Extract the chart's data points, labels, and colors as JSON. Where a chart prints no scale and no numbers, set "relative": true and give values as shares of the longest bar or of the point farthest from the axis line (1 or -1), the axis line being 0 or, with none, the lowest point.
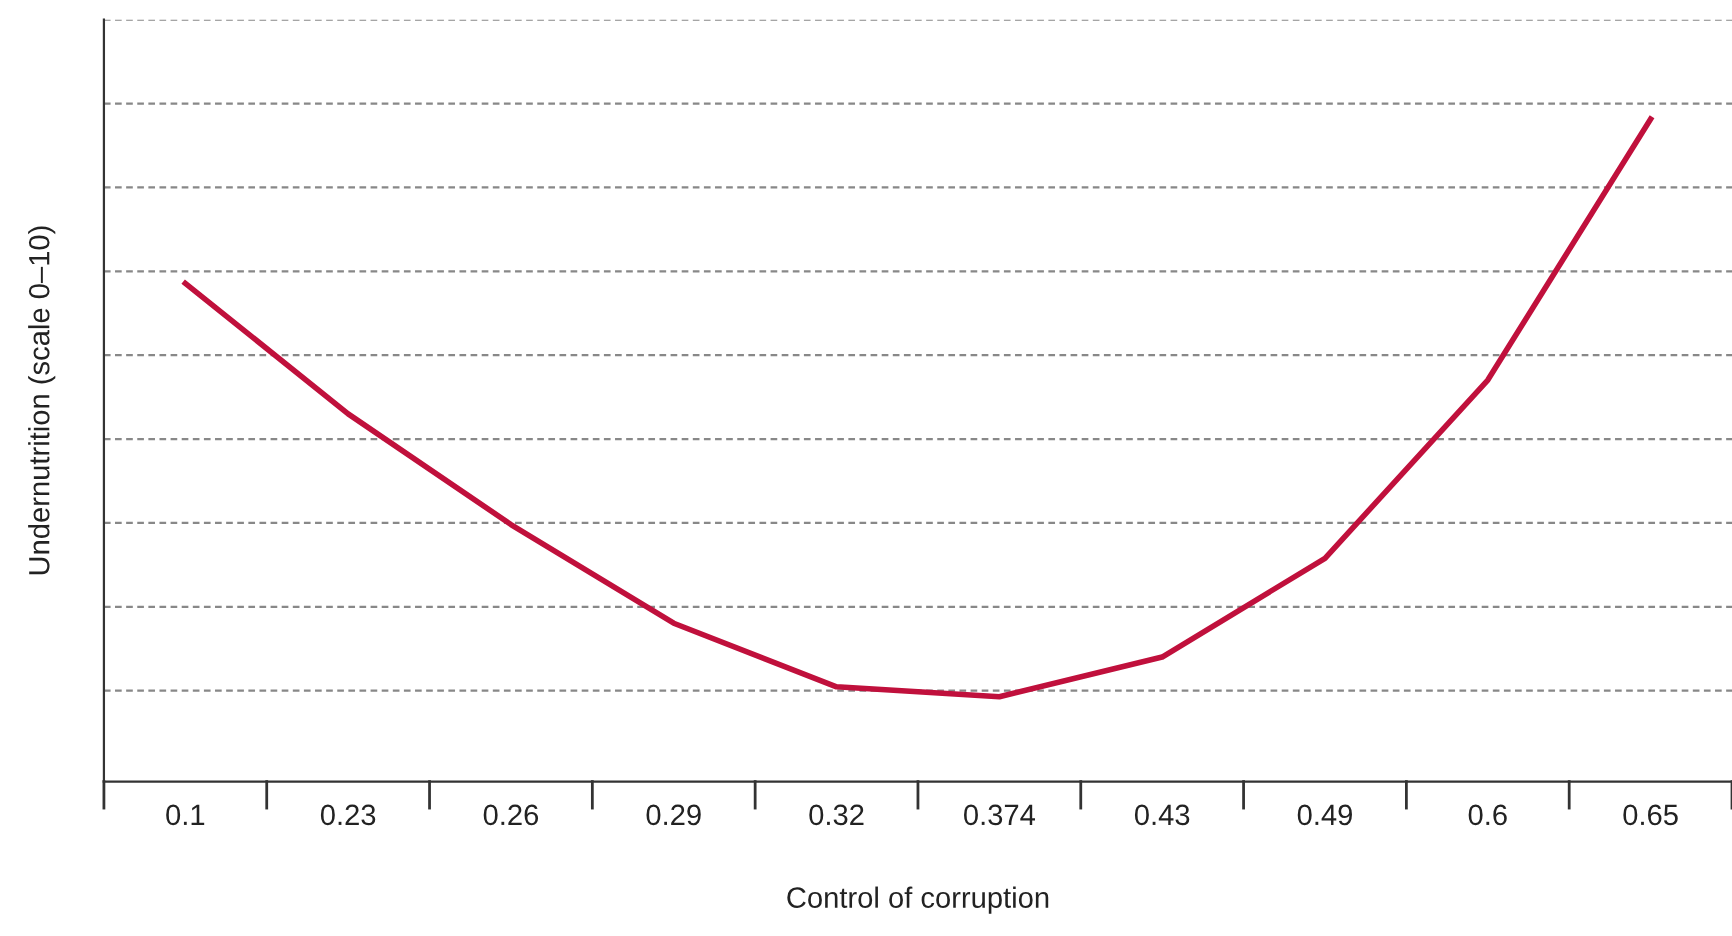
{
  "chart_data": {
    "type": "line",
    "xlabel": "Control of corruption",
    "ylabel": "Undernutrition (scale 0–10)",
    "categories": [
      "0.1",
      "0.23",
      "0.26",
      "0.29",
      "0.32",
      "0.374",
      "0.43",
      "0.49",
      "0.6",
      "0.65"
    ],
    "relative": true,
    "grid": "y",
    "marker": "none",
    "line_style": "solid",
    "series": [
      {
        "color": "#c0103c",
        "values": [
          0.752,
          0.555,
          0.388,
          0.239,
          0.143,
          0.128,
          0.188,
          0.337,
          0.606,
          1.0
        ]
      }
    ]
  }
}
